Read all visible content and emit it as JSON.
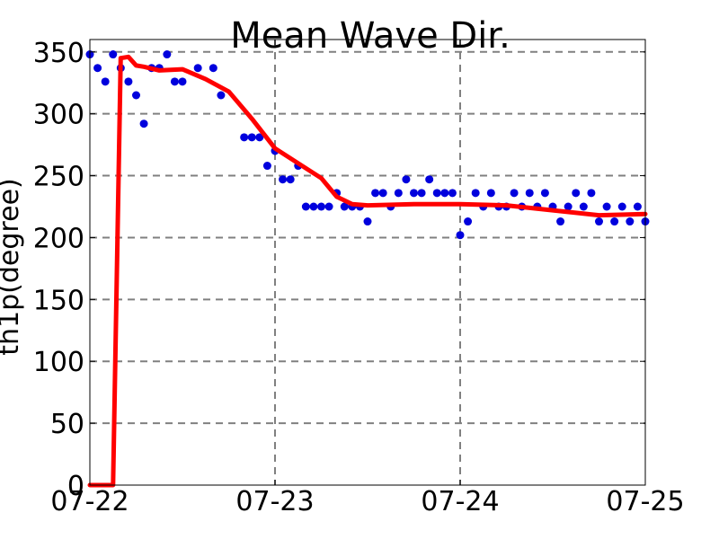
{
  "chart_data": {
    "type": "line",
    "title": "Mean Wave Dir.",
    "xlabel": "",
    "ylabel": "th1p(degree)",
    "xlim": [
      "07-22",
      "07-25"
    ],
    "ylim": [
      0,
      360
    ],
    "x_ticks": [
      "07-22",
      "07-23",
      "07-24",
      "07-25"
    ],
    "y_ticks": [
      0,
      50,
      100,
      150,
      200,
      250,
      300,
      350
    ],
    "grid": true,
    "series": [
      {
        "style": "scatter",
        "color": "#0000dd",
        "x": [
          "07-22 00:00",
          "07-22 01:00",
          "07-22 02:00",
          "07-22 03:00",
          "07-22 04:00",
          "07-22 05:00",
          "07-22 06:00",
          "07-22 07:00",
          "07-22 08:00",
          "07-22 09:00",
          "07-22 10:00",
          "07-22 11:00",
          "07-22 12:00",
          "07-22 14:00",
          "07-22 16:00",
          "07-22 17:00",
          "07-22 20:00",
          "07-22 21:00",
          "07-22 22:00",
          "07-22 23:00",
          "07-23 00:00",
          "07-23 01:00",
          "07-23 02:00",
          "07-23 03:00",
          "07-23 04:00",
          "07-23 05:00",
          "07-23 06:00",
          "07-23 07:00",
          "07-23 08:00",
          "07-23 09:00",
          "07-23 10:00",
          "07-23 11:00",
          "07-23 12:00",
          "07-23 13:00",
          "07-23 14:00",
          "07-23 15:00",
          "07-23 16:00",
          "07-23 17:00",
          "07-23 18:00",
          "07-23 19:00",
          "07-23 20:00",
          "07-23 21:00",
          "07-23 22:00",
          "07-23 23:00",
          "07-24 00:00",
          "07-24 01:00",
          "07-24 02:00",
          "07-24 03:00",
          "07-24 04:00",
          "07-24 05:00",
          "07-24 06:00",
          "07-24 07:00",
          "07-24 08:00",
          "07-24 09:00",
          "07-24 10:00",
          "07-24 11:00",
          "07-24 12:00",
          "07-24 13:00",
          "07-24 14:00",
          "07-24 15:00",
          "07-24 16:00",
          "07-24 17:00",
          "07-24 18:00",
          "07-24 19:00",
          "07-24 20:00",
          "07-24 21:00",
          "07-24 22:00",
          "07-24 23:00",
          "07-25 00:00"
        ],
        "y": [
          348,
          337,
          326,
          348,
          337,
          326,
          315,
          292,
          337,
          337,
          348,
          326,
          326,
          337,
          337,
          315,
          281,
          281,
          281,
          258,
          270,
          247,
          247,
          258,
          225,
          225,
          225,
          225,
          236,
          225,
          225,
          225,
          213,
          236,
          236,
          225,
          236,
          247,
          236,
          236,
          247,
          236,
          236,
          236,
          202,
          213,
          236,
          225,
          236,
          225,
          225,
          236,
          225,
          236,
          225,
          236,
          225,
          213,
          225,
          236,
          225,
          236,
          213,
          225,
          213,
          225,
          213,
          225,
          213
        ]
      },
      {
        "style": "line",
        "color": "#ff0000",
        "x": [
          "07-22 00:00",
          "07-22 03:00",
          "07-22 04:00",
          "07-22 05:00",
          "07-22 06:00",
          "07-22 07:00",
          "07-22 09:00",
          "07-22 12:00",
          "07-22 15:00",
          "07-22 18:00",
          "07-22 21:00",
          "07-23 00:00",
          "07-23 03:00",
          "07-23 06:00",
          "07-23 08:00",
          "07-23 10:00",
          "07-23 12:00",
          "07-23 18:00",
          "07-24 00:00",
          "07-24 06:00",
          "07-24 12:00",
          "07-24 18:00",
          "07-25 00:00"
        ],
        "y": [
          0,
          0,
          345,
          346,
          339,
          338,
          335,
          336,
          328,
          318,
          296,
          272,
          260,
          248,
          233,
          227,
          226,
          227,
          227,
          226,
          222,
          218,
          219
        ]
      }
    ]
  }
}
